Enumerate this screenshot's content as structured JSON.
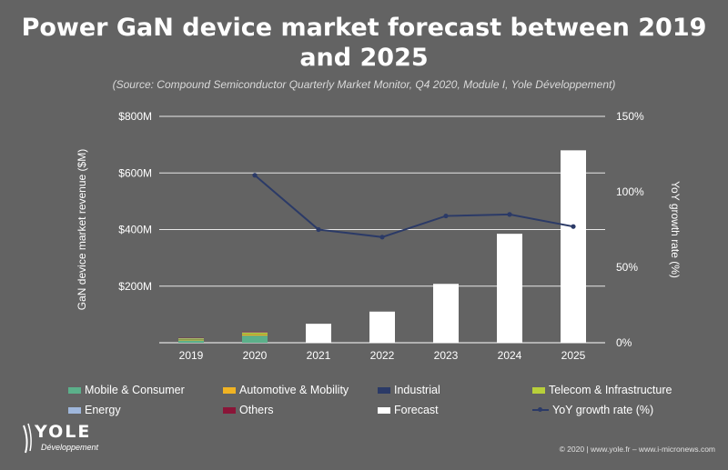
{
  "title": "Power GaN device market forecast between 2019 and 2025",
  "subtitle": "(Source: Compound Semiconductor Quarterly Market Monitor, Q4 2020, Module I, Yole Développement)",
  "chart_data": {
    "type": "bar",
    "categories": [
      "2019",
      "2020",
      "2021",
      "2022",
      "2023",
      "2024",
      "2025"
    ],
    "ylabel": "GaN device market revenue ($M)",
    "ylim": [
      0,
      800
    ],
    "yticks": [
      "$800M",
      "$600M",
      "$400M",
      "$200M"
    ],
    "y2label": "YoY growth rate (%)",
    "y2lim": [
      0,
      150
    ],
    "y2ticks": [
      "150%",
      "100%",
      "50%",
      "0%"
    ],
    "grid": true,
    "stacked_segments": [
      {
        "name": "Mobile & Consumer",
        "color": "#5bb08a",
        "values": [
          8,
          25,
          0,
          0,
          0,
          0,
          0
        ]
      },
      {
        "name": "Automotive & Mobility",
        "color": "#f0b323",
        "values": [
          2,
          4,
          0,
          0,
          0,
          0,
          0
        ]
      },
      {
        "name": "Industrial",
        "color": "#2b3a67",
        "values": [
          1,
          1,
          0,
          0,
          0,
          0,
          0
        ]
      },
      {
        "name": "Telecom & Infrastructure",
        "color": "#b8cf3a",
        "values": [
          4,
          6,
          0,
          0,
          0,
          0,
          0
        ]
      },
      {
        "name": "Energy",
        "color": "#9fb7dc",
        "values": [
          1,
          1,
          0,
          0,
          0,
          0,
          0
        ]
      },
      {
        "name": "Others",
        "color": "#8a1538",
        "values": [
          1,
          2,
          0,
          0,
          0,
          0,
          0
        ]
      },
      {
        "name": "Forecast",
        "color": "#ffffff",
        "values": [
          0,
          0,
          67,
          110,
          208,
          385,
          680
        ]
      }
    ],
    "line_series": {
      "name": "YoY growth rate (%)",
      "color": "#2b3a67",
      "values": [
        null,
        111,
        75,
        70,
        84,
        85,
        77
      ]
    },
    "legend_placement": "bottom"
  },
  "legend": {
    "items": [
      {
        "label": "Mobile & Consumer",
        "color": "#5bb08a",
        "kind": "swatch"
      },
      {
        "label": "Automotive & Mobility",
        "color": "#f0b323",
        "kind": "swatch"
      },
      {
        "label": "Industrial",
        "color": "#2b3a67",
        "kind": "swatch"
      },
      {
        "label": "Telecom & Infrastructure",
        "color": "#b8cf3a",
        "kind": "swatch"
      },
      {
        "label": "Energy",
        "color": "#9fb7dc",
        "kind": "swatch"
      },
      {
        "label": "Others",
        "color": "#8a1538",
        "kind": "swatch"
      },
      {
        "label": "Forecast",
        "color": "#ffffff",
        "kind": "swatch"
      },
      {
        "label": "YoY growth rate (%)",
        "color": "#2b3a67",
        "kind": "line"
      }
    ]
  },
  "logo": {
    "name": "YOLE",
    "sub": "Développement",
    "icon": "yole-logo-icon"
  },
  "footer": "© 2020 | www.yole.fr – www.i-micronews.com"
}
